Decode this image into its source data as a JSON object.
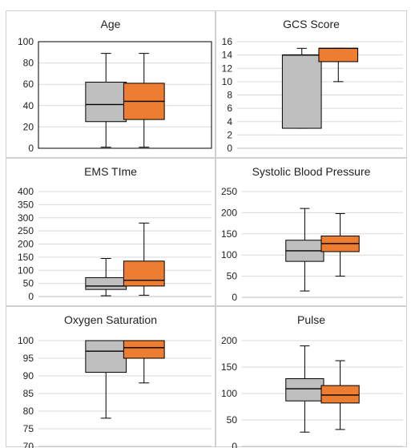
{
  "colors": {
    "series_a": "#bfbfbf",
    "series_b": "#ed7d31",
    "outline": "#000000",
    "grid": "#d9d9d9",
    "border": "#d0d0d0"
  },
  "chart_data": [
    {
      "type": "boxplot",
      "title": "Age",
      "ylim": [
        0,
        100
      ],
      "yticks": [
        "0",
        "20",
        "40",
        "60",
        "80",
        "100"
      ],
      "grid": true,
      "plot_border": true,
      "series": [
        {
          "color": "#bfbfbf",
          "min": 1,
          "q1": 25,
          "median": 41,
          "q3": 62,
          "max": 89
        },
        {
          "color": "#ed7d31",
          "min": 1,
          "q1": 27,
          "median": 44,
          "q3": 61,
          "max": 89
        }
      ]
    },
    {
      "type": "boxplot",
      "title": "GCS Score",
      "ylim": [
        0,
        16
      ],
      "yticks": [
        "0",
        "2",
        "4",
        "6",
        "8",
        "10",
        "12",
        "14",
        "16"
      ],
      "grid": true,
      "plot_border": false,
      "series": [
        {
          "color": "#bfbfbf",
          "min": 3,
          "q1": 3,
          "median": 14,
          "q3": 14,
          "max": 15
        },
        {
          "color": "#ed7d31",
          "min": 10,
          "q1": 13,
          "median": 15,
          "q3": 15,
          "max": 15
        }
      ]
    },
    {
      "type": "boxplot",
      "title": "EMS TIme",
      "ylim": [
        0,
        400
      ],
      "yticks": [
        "0",
        "50",
        "100",
        "150",
        "200",
        "250",
        "300",
        "350",
        "400"
      ],
      "grid": true,
      "plot_border": false,
      "series": [
        {
          "color": "#bfbfbf",
          "min": 3,
          "q1": 27,
          "median": 40,
          "q3": 72,
          "max": 145
        },
        {
          "color": "#ed7d31",
          "min": 5,
          "q1": 40,
          "median": 62,
          "q3": 135,
          "max": 280
        }
      ]
    },
    {
      "type": "boxplot",
      "title": "Systolic Blood Pressure",
      "ylim": [
        0,
        250
      ],
      "yticks": [
        "0",
        "50",
        "100",
        "150",
        "200",
        "250"
      ],
      "grid": true,
      "plot_border": false,
      "series": [
        {
          "color": "#bfbfbf",
          "min": 15,
          "q1": 85,
          "median": 110,
          "q3": 135,
          "max": 210
        },
        {
          "color": "#ed7d31",
          "min": 50,
          "q1": 108,
          "median": 127,
          "q3": 145,
          "max": 198
        }
      ]
    },
    {
      "type": "boxplot",
      "title": "Oxygen Saturation",
      "ylim": [
        70,
        100
      ],
      "yticks": [
        "70",
        "75",
        "80",
        "85",
        "90",
        "95",
        "100"
      ],
      "grid": true,
      "plot_border": false,
      "series": [
        {
          "color": "#bfbfbf",
          "min": 78,
          "q1": 91,
          "median": 97,
          "q3": 100,
          "max": 100
        },
        {
          "color": "#ed7d31",
          "min": 88,
          "q1": 95,
          "median": 98,
          "q3": 100,
          "max": 100
        }
      ]
    },
    {
      "type": "boxplot",
      "title": "Pulse",
      "ylim": [
        0,
        200
      ],
      "yticks": [
        "0",
        "50",
        "100",
        "150",
        "200"
      ],
      "grid": true,
      "plot_border": false,
      "series": [
        {
          "color": "#bfbfbf",
          "min": 27,
          "q1": 86,
          "median": 109,
          "q3": 128,
          "max": 190
        },
        {
          "color": "#ed7d31",
          "min": 32,
          "q1": 82,
          "median": 97,
          "q3": 115,
          "max": 162
        }
      ]
    }
  ]
}
